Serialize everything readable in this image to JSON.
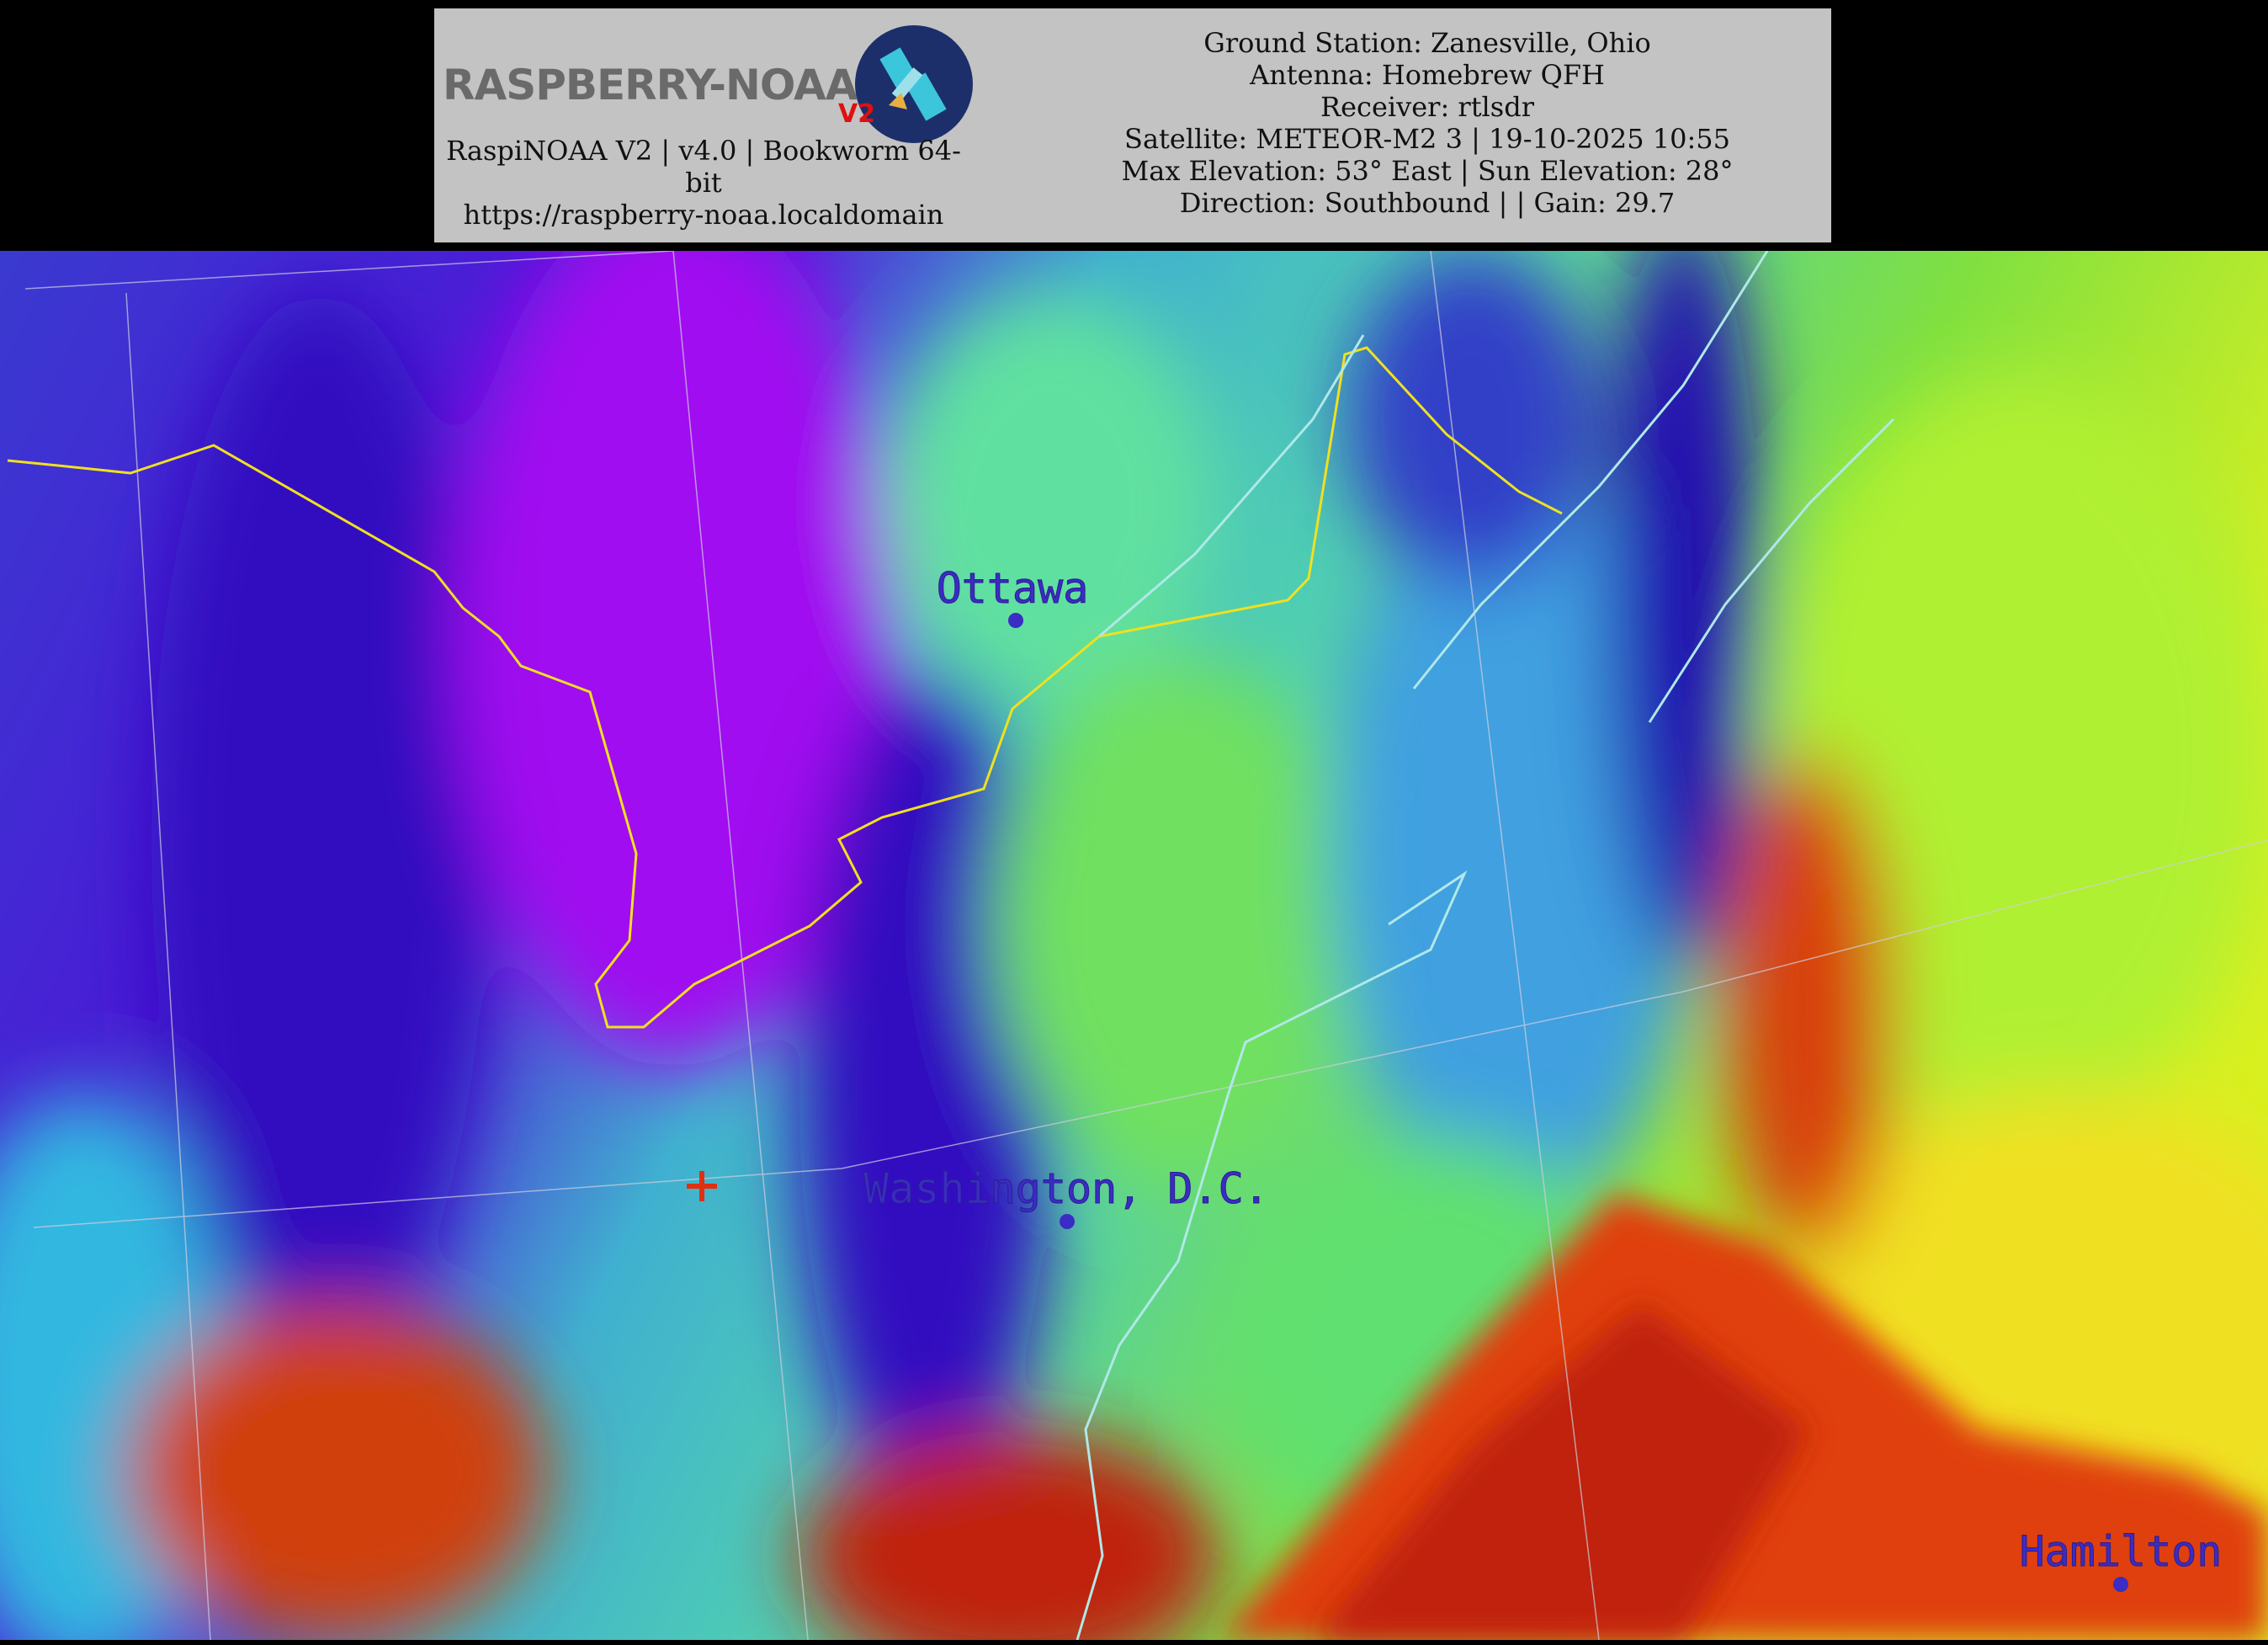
{
  "header": {
    "logo": {
      "text": "RASPBERRY-NOAA",
      "badge": "V2"
    },
    "left_lines": [
      "RaspiNOAA V2 | v4.0 | Bookworm 64-bit",
      "https://raspberry-noaa.localdomain"
    ],
    "info_lines": [
      "Ground Station: Zanesville, Ohio",
      "Antenna: Homebrew QFH",
      "Receiver: rtlsdr",
      "Satellite: METEOR-M2 3 | 19-10-2025 10:55",
      "Max Elevation: 53° East | Sun Elevation: 28°",
      "Direction: Southbound | | Gain: 29.7"
    ]
  },
  "map": {
    "type": "satellite thermal image, rainbow palette",
    "border_color": "#f0e020",
    "coast_color": "#b0e8e8",
    "city_color": "#3a2cc4",
    "cities": [
      {
        "name": "Ottawa"
      },
      {
        "name": "Washington, D.C."
      },
      {
        "name": "Hamilton"
      }
    ],
    "marker": {
      "icon": "plus-marker-icon",
      "color": "#e03010"
    }
  }
}
